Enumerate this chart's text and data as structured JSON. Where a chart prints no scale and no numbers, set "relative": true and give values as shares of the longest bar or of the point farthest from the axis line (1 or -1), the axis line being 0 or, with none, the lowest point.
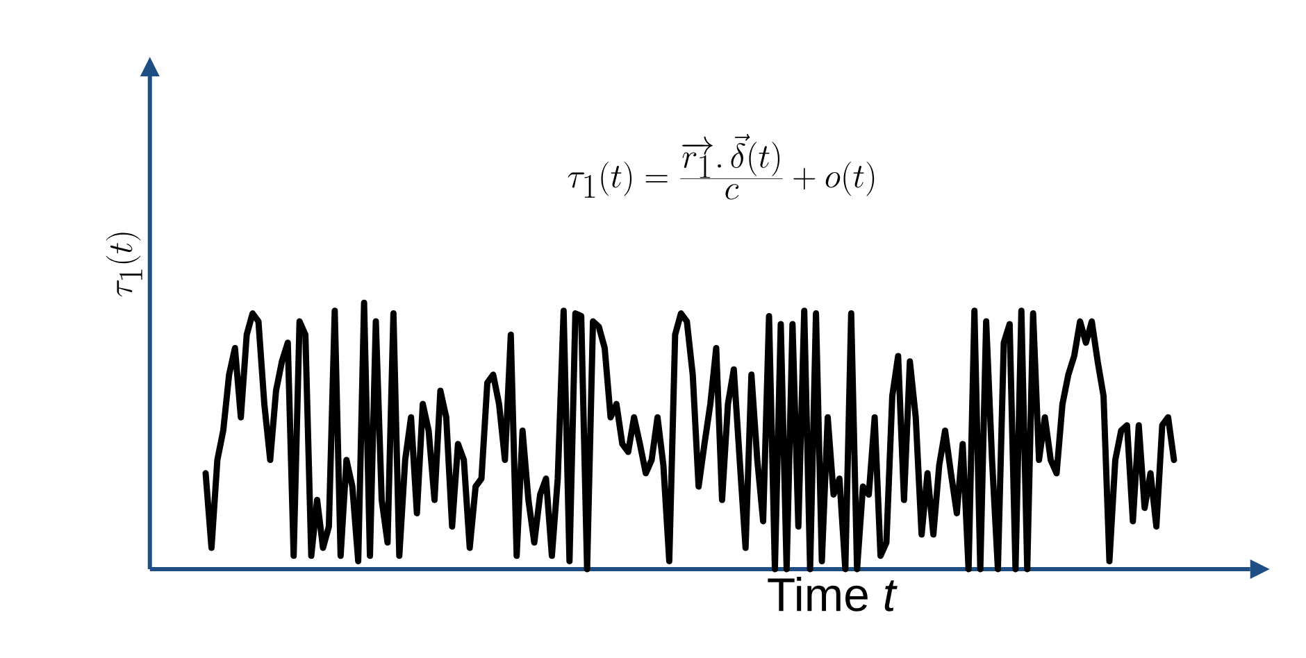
{
  "chart_data": {
    "type": "line",
    "relative": true,
    "title": "\\tau_1(t) = \\frac{\\overrightarrow{r_1}.\\,\\vec{\\delta}(t)}{c} + o(t)",
    "ylabel": "\\tau_1(t)",
    "xlabel": "Time  *t*",
    "categories": [
      null,
      null,
      null,
      null,
      null,
      null,
      null,
      null,
      null,
      null,
      null,
      null,
      null,
      null,
      null,
      null,
      null,
      null,
      null,
      null,
      null,
      null,
      null,
      null,
      null,
      null,
      null,
      null,
      null,
      null,
      null,
      null,
      null,
      null,
      null,
      null,
      null,
      null,
      null,
      null,
      null,
      null,
      null,
      null,
      null,
      null,
      null,
      null,
      null,
      null,
      null,
      null,
      null,
      null,
      null,
      null,
      null,
      null,
      null,
      null,
      null,
      null,
      null,
      null,
      null,
      null,
      null,
      null,
      null,
      null,
      null,
      null,
      null,
      null,
      null,
      null,
      null,
      null,
      null,
      null,
      null,
      null,
      null,
      null,
      null,
      null,
      null,
      null,
      null,
      null,
      null,
      null,
      null,
      null,
      null,
      null,
      null,
      null,
      null,
      null,
      null,
      null,
      null,
      null,
      null,
      null,
      null,
      null,
      null,
      null,
      null,
      null,
      null,
      null,
      null,
      null,
      null,
      null,
      null,
      null,
      null,
      null,
      null,
      null,
      null,
      null,
      null,
      null,
      null,
      null,
      null,
      null,
      null,
      null,
      null,
      null,
      null,
      null,
      null,
      null,
      null,
      null,
      null,
      null,
      null,
      null,
      null,
      null,
      null,
      null,
      null,
      null,
      null,
      null,
      null,
      null,
      null,
      null,
      null,
      null,
      null,
      null,
      null,
      null,
      null,
      null
    ],
    "series": [
      {
        "color": "#000000",
        "values": [
          0.36,
          0.08,
          0.41,
          0.52,
          0.73,
          0.83,
          0.57,
          0.88,
          0.96,
          0.93,
          0.62,
          0.41,
          0.67,
          0.78,
          0.85,
          0.05,
          0.93,
          0.88,
          0.05,
          0.26,
          0.08,
          0.16,
          0.97,
          0.05,
          0.41,
          0.31,
          0.03,
          1.0,
          0.05,
          0.93,
          0.26,
          0.1,
          0.96,
          0.05,
          0.41,
          0.57,
          0.21,
          0.62,
          0.52,
          0.26,
          0.67,
          0.57,
          0.16,
          0.47,
          0.41,
          0.08,
          0.31,
          0.34,
          0.7,
          0.73,
          0.62,
          0.41,
          0.88,
          0.05,
          0.52,
          0.26,
          0.1,
          0.28,
          0.34,
          0.05,
          0.34,
          0.97,
          0.03,
          0.96,
          0.95,
          0,
          0.93,
          0.91,
          0.83,
          0.57,
          0.62,
          0.47,
          0.44,
          0.57,
          0.47,
          0.36,
          0.41,
          0.57,
          0.39,
          0.03,
          0.88,
          0.96,
          0.93,
          0.73,
          0.31,
          0.47,
          0.62,
          0.83,
          0.26,
          0.62,
          0.75,
          0.41,
          0.08,
          0.73,
          0.41,
          0.18,
          0.95,
          0,
          0.92,
          0,
          0.92,
          0.16,
          0.97,
          0,
          0.96,
          0.03,
          0.57,
          0.28,
          0.34,
          0,
          0.96,
          0,
          0.31,
          0.28,
          0.57,
          0.05,
          0.1,
          0.65,
          0.8,
          0.26,
          0.78,
          0.57,
          0.13,
          0.36,
          0.13,
          0.39,
          0.52,
          0.36,
          0.21,
          0.47,
          0,
          0.97,
          0,
          0.93,
          0.41,
          0,
          0.85,
          0.92,
          0,
          0.97,
          0,
          0.96,
          0.41,
          0.57,
          0.41,
          0.36,
          0.62,
          0.73,
          0.8,
          0.93,
          0.85,
          0.93,
          0.78,
          0.65,
          0.03,
          0.41,
          0.52,
          0.54,
          0.18,
          0.54,
          0.23,
          0.36,
          0.16,
          0.54,
          0.57,
          0.41
        ]
      }
    ]
  }
}
